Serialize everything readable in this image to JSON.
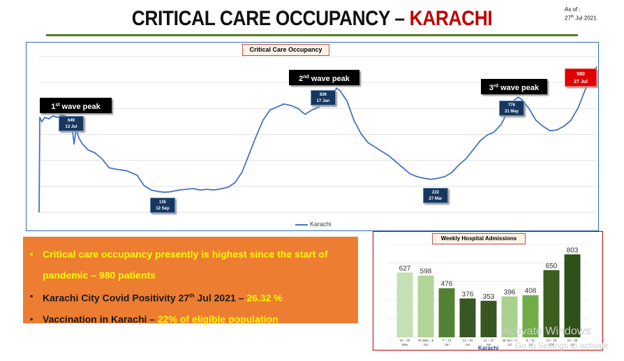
{
  "slide": {
    "title_main": "CRITICAL CARE OCCUPANCY – ",
    "title_place": "KARACHI",
    "as_of_label": "As of :",
    "as_of_day": "27",
    "as_of_sup": "th",
    "as_of_rest": " Jul 2021"
  },
  "colors": {
    "title_accent": "#c00000",
    "line": "#4472c4",
    "info_bg": "#ed7d31",
    "highlight": "#ffff00",
    "callout": "#17375e",
    "bar_light": "#a9d18e",
    "bar_dark": "#385723"
  },
  "line_chart": {
    "title": "Critical Care Occupancy",
    "legend": "Karachi",
    "peak1_num": "1",
    "peak1_sup": "st",
    "peak1_rest": " wave peak",
    "peak2_num": "2",
    "peak2_sup": "nd",
    "peak2_rest": " wave peak",
    "peak3_num": "3",
    "peak3_sup": "rd",
    "peak3_rest": " wave peak",
    "callouts": [
      {
        "value": "649",
        "date": "13 Jul"
      },
      {
        "value": "135",
        "date": "12 Sep"
      },
      {
        "value": "836",
        "date": "17 Jan"
      },
      {
        "value": "222",
        "date": "27 Mar"
      },
      {
        "value": "776",
        "date": "31 May"
      },
      {
        "value": "980",
        "date": "27 Jul"
      }
    ]
  },
  "chart_data": [
    {
      "type": "line",
      "title": "Critical Care Occupancy",
      "series": [
        {
          "name": "Karachi",
          "points": [
            [
              0,
              0
            ],
            [
              1,
              640
            ],
            [
              4,
              610
            ],
            [
              8,
              640
            ],
            [
              14,
              630
            ],
            [
              20,
              650
            ],
            [
              26,
              640
            ],
            [
              32,
              655
            ],
            [
              38,
              649
            ],
            [
              42,
              640
            ],
            [
              46,
              620
            ],
            [
              50,
              460
            ],
            [
              53,
              560
            ],
            [
              57,
              500
            ],
            [
              62,
              460
            ],
            [
              70,
              420
            ],
            [
              80,
              400
            ],
            [
              90,
              360
            ],
            [
              100,
              300
            ],
            [
              110,
              290
            ],
            [
              125,
              280
            ],
            [
              140,
              250
            ],
            [
              150,
              180
            ],
            [
              160,
              150
            ],
            [
              170,
              140
            ],
            [
              180,
              135
            ],
            [
              190,
              140
            ],
            [
              200,
              150
            ],
            [
              210,
              155
            ],
            [
              220,
              160
            ],
            [
              230,
              150
            ],
            [
              240,
              155
            ],
            [
              250,
              150
            ],
            [
              260,
              158
            ],
            [
              270,
              168
            ],
            [
              280,
              200
            ],
            [
              290,
              270
            ],
            [
              300,
              390
            ],
            [
              310,
              510
            ],
            [
              320,
              620
            ],
            [
              330,
              690
            ],
            [
              340,
              710
            ],
            [
              350,
              730
            ],
            [
              360,
              720
            ],
            [
              370,
              700
            ],
            [
              380,
              660
            ],
            [
              390,
              690
            ],
            [
              400,
              710
            ],
            [
              410,
              760
            ],
            [
              420,
              800
            ],
            [
              425,
              836
            ],
            [
              430,
              820
            ],
            [
              440,
              750
            ],
            [
              450,
              620
            ],
            [
              460,
              530
            ],
            [
              470,
              470
            ],
            [
              480,
              440
            ],
            [
              490,
              410
            ],
            [
              500,
              380
            ],
            [
              510,
              340
            ],
            [
              520,
              300
            ],
            [
              530,
              260
            ],
            [
              540,
              240
            ],
            [
              550,
              230
            ],
            [
              560,
              222
            ],
            [
              570,
              230
            ],
            [
              580,
              240
            ],
            [
              590,
              270
            ],
            [
              600,
              320
            ],
            [
              610,
              360
            ],
            [
              620,
              420
            ],
            [
              630,
              480
            ],
            [
              640,
              520
            ],
            [
              650,
              540
            ],
            [
              660,
              590
            ],
            [
              670,
              680
            ],
            [
              680,
              760
            ],
            [
              685,
              776
            ],
            [
              690,
              760
            ],
            [
              700,
              700
            ],
            [
              710,
              620
            ],
            [
              720,
              580
            ],
            [
              730,
              550
            ],
            [
              740,
              555
            ],
            [
              750,
              580
            ],
            [
              760,
              620
            ],
            [
              770,
              700
            ],
            [
              780,
              820
            ],
            [
              790,
              940
            ],
            [
              797,
              980
            ]
          ]
        }
      ],
      "ylim": [
        0,
        1050
      ]
    },
    {
      "type": "bar",
      "title": "Weekly Hospital Admissions",
      "legend": "Karachi",
      "categories": [
        "24 – 30 May",
        "31 May – 6 Jun",
        "7 – 13 Jun",
        "14 – 20 Jun",
        "21 – 27 Jun",
        "28 Jun – 4 Jul",
        "5 – 11 Jul",
        "12 – 18 Jul",
        "19 – 25 Jul"
      ],
      "values": [
        627,
        598,
        476,
        376,
        353,
        396,
        408,
        650,
        803
      ],
      "ylim": [
        0,
        900
      ]
    }
  ],
  "info": [
    {
      "pre": "Critical care occupancy presently is highest since the start of",
      "hl": "",
      "post": "",
      "style": "yellow"
    },
    {
      "pre": "pandemic – 980 patients",
      "hl": "",
      "post": "",
      "style": "yellow"
    },
    {
      "pre": "Karachi City Covid Positivity  27",
      "sup": "th",
      "mid": " Jul 2021 – ",
      "hl": "26.32 %",
      "style": "dark"
    },
    {
      "pre": "Vaccination in Karachi – ",
      "hl": "22% of eligible population",
      "style": "dark"
    }
  ],
  "watermark": {
    "line1": "Activate Windows",
    "line2": "Go to Settings to activate"
  }
}
